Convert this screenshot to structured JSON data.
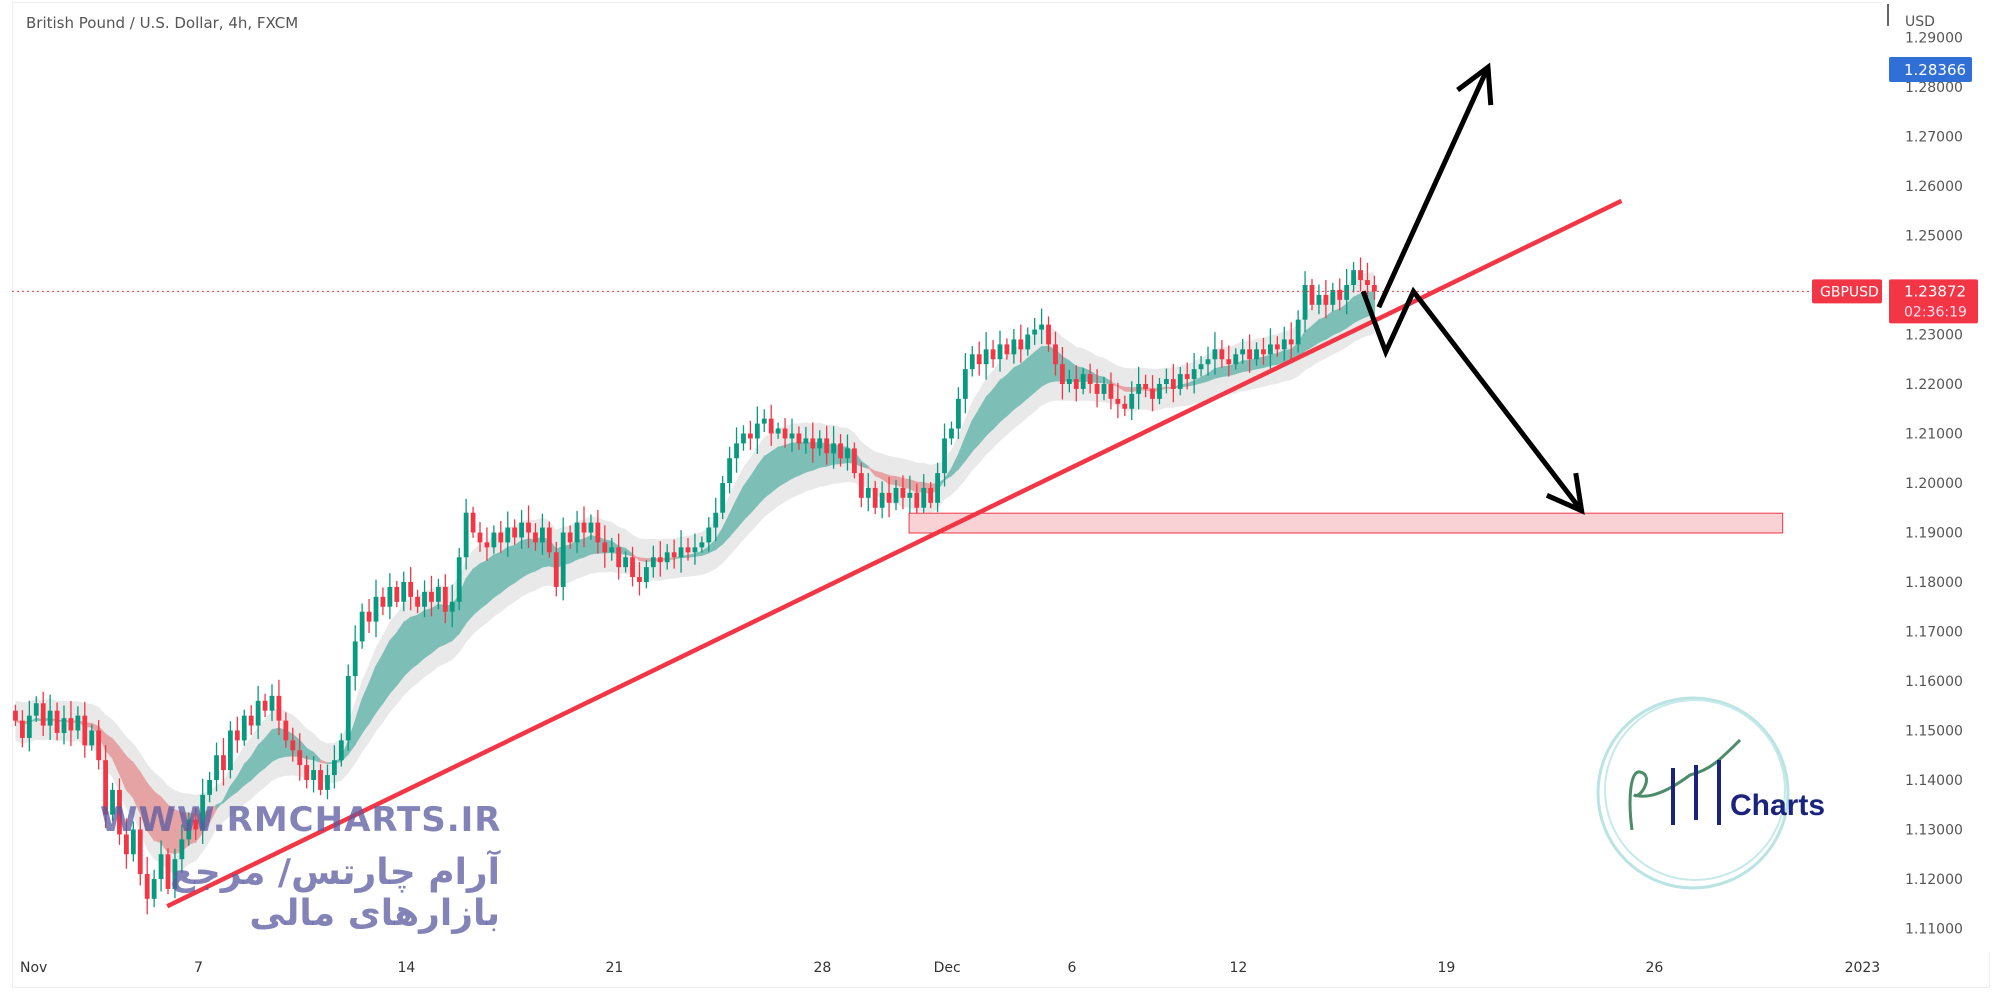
{
  "header": {
    "title": "British Pound / U.S. Dollar, 4h, FXCM"
  },
  "colors": {
    "up": "#089981",
    "down": "#f23645",
    "trendline": "#f23645",
    "zone_fill": "#f9d2d6",
    "zone_border": "#f23645",
    "ribbon_up": "#7dbfb6",
    "ribbon_down": "#e6a3a3",
    "envelope": "#e4e4e4",
    "price_label_blue": "#2f6fd6",
    "arrow": "#000000"
  },
  "price_axis": {
    "currency": "USD",
    "ticks": [
      "1.29000",
      "1.28000",
      "1.27000",
      "1.26000",
      "1.25000",
      "1.24000",
      "1.23000",
      "1.22000",
      "1.21000",
      "1.20000",
      "1.19000",
      "1.18000",
      "1.17000",
      "1.16000",
      "1.15000",
      "1.14000",
      "1.13000",
      "1.12000",
      "1.11000"
    ],
    "crosshair_price": "1.28366",
    "symbol": "GBPUSD",
    "last_price": "1.23872",
    "countdown": "02:36:19"
  },
  "watermark": {
    "url": "WWW.RMCHARTS.IR",
    "tagline": "آرام چارتس/ مرجع بازارهای مالی",
    "logo_text": "Charts",
    "logo_initials": "RM"
  },
  "chart_data": {
    "type": "candlestick",
    "title": "British Pound / U.S. Dollar, 4h, FXCM",
    "timeframe": "4h",
    "ylim": [
      1.105,
      1.292
    ],
    "x_ticks": [
      {
        "label": "Nov",
        "date": "2022-11-01"
      },
      {
        "label": "7",
        "date": "2022-11-07"
      },
      {
        "label": "14",
        "date": "2022-11-14"
      },
      {
        "label": "21",
        "date": "2022-11-21"
      },
      {
        "label": "28",
        "date": "2022-11-28"
      },
      {
        "label": "Dec",
        "date": "2022-12-01"
      },
      {
        "label": "6",
        "date": "2022-12-06"
      },
      {
        "label": "12",
        "date": "2022-12-12"
      },
      {
        "label": "19",
        "date": "2022-12-19"
      },
      {
        "label": "26",
        "date": "2022-12-26"
      },
      {
        "label": "2023",
        "date": "2023-01-02"
      }
    ],
    "first_bar": "2022-10-31 20",
    "closes": [
      1.152,
      1.1485,
      1.153,
      1.1555,
      1.151,
      1.154,
      1.1495,
      1.1525,
      1.15,
      1.153,
      1.147,
      1.15,
      1.144,
      1.133,
      1.138,
      1.129,
      1.125,
      1.13,
      1.121,
      1.116,
      1.12,
      1.125,
      1.118,
      1.124,
      1.128,
      1.132,
      1.13,
      1.137,
      1.14,
      1.145,
      1.142,
      1.15,
      1.148,
      1.153,
      1.151,
      1.156,
      1.154,
      1.157,
      1.152,
      1.148,
      1.146,
      1.143,
      1.14,
      1.142,
      1.138,
      1.141,
      1.144,
      1.148,
      1.161,
      1.168,
      1.174,
      1.172,
      1.177,
      1.175,
      1.179,
      1.176,
      1.18,
      1.177,
      1.175,
      1.178,
      1.176,
      1.179,
      1.174,
      1.176,
      1.185,
      1.194,
      1.19,
      1.188,
      1.187,
      1.19,
      1.188,
      1.191,
      1.189,
      1.192,
      1.19,
      1.188,
      1.191,
      1.186,
      1.179,
      1.19,
      1.188,
      1.192,
      1.19,
      1.192,
      1.188,
      1.186,
      1.187,
      1.183,
      1.185,
      1.181,
      1.18,
      1.183,
      1.185,
      1.184,
      1.186,
      1.185,
      1.187,
      1.186,
      1.187,
      1.188,
      1.191,
      1.194,
      1.2,
      1.205,
      1.208,
      1.21,
      1.209,
      1.212,
      1.213,
      1.21,
      1.211,
      1.209,
      1.21,
      1.208,
      1.209,
      1.207,
      1.209,
      1.206,
      1.208,
      1.205,
      1.207,
      1.202,
      1.197,
      1.199,
      1.195,
      1.198,
      1.196,
      1.199,
      1.197,
      1.198,
      1.195,
      1.199,
      1.196,
      1.202,
      1.209,
      1.211,
      1.217,
      1.223,
      1.226,
      1.224,
      1.227,
      1.225,
      1.228,
      1.226,
      1.229,
      1.227,
      1.23,
      1.231,
      1.232,
      1.228,
      1.224,
      1.22,
      1.221,
      1.219,
      1.222,
      1.22,
      1.218,
      1.22,
      1.217,
      1.216,
      1.215,
      1.218,
      1.22,
      1.219,
      1.217,
      1.22,
      1.221,
      1.219,
      1.222,
      1.221,
      1.223,
      1.224,
      1.225,
      1.227,
      1.225,
      1.224,
      1.226,
      1.227,
      1.225,
      1.227,
      1.226,
      1.228,
      1.227,
      1.229,
      1.228,
      1.233,
      1.24,
      1.236,
      1.238,
      1.236,
      1.239,
      1.237,
      1.24,
      1.243,
      1.241,
      1.24,
      1.23872
    ],
    "last_price": 1.23872,
    "drawings": {
      "trendline": {
        "from": {
          "date": "2022-11-04 06",
          "price": 1.1145
        },
        "to": {
          "date": "2022-12-23 05",
          "price": 1.257
        }
      },
      "support_zone": {
        "from": "2022-11-30 02",
        "to": "2022-12-29 02",
        "top": 1.1939,
        "bottom": 1.1899
      },
      "bullish_arrow": [
        {
          "date": "2022-12-15 09",
          "price": 1.2355
        },
        {
          "date": "2022-12-20 00",
          "price": 1.284
        }
      ],
      "bearish_path": [
        {
          "date": "2022-12-15 00",
          "price": 1.2387
        },
        {
          "date": "2022-12-15 13",
          "price": 1.2265
        },
        {
          "date": "2022-12-16 05",
          "price": 1.2387
        },
        {
          "date": "2022-12-22 06",
          "price": 1.1944
        }
      ]
    }
  }
}
